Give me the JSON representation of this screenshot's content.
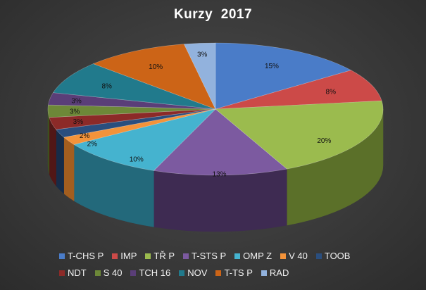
{
  "chart_data": {
    "type": "pie",
    "title": "Kurzy  2017",
    "legend_position": "bottom",
    "slices": [
      {
        "label": "T-CHS P",
        "value": 15,
        "display": "15%",
        "color": "#4a7cc8",
        "side": "#2d4d82"
      },
      {
        "label": "IMP",
        "value": 8,
        "display": "8%",
        "color": "#cc4a48",
        "side": "#82302e"
      },
      {
        "label": "TŘ P",
        "value": 20,
        "display": "20%",
        "color": "#9bbb4e",
        "side": "#5b7029"
      },
      {
        "label": "T-STS P",
        "value": 13,
        "display": "13%",
        "color": "#7c5aa0",
        "side": "#3e2b52"
      },
      {
        "label": "OMP Z",
        "value": 10,
        "display": "10%",
        "color": "#45b3cf",
        "side": "#23697b"
      },
      {
        "label": "V 40",
        "value": 2,
        "display": "2%",
        "color": "#f3933a",
        "side": "#a35e1f"
      },
      {
        "label": "TOOB",
        "value": 2,
        "display": "2%",
        "color": "#2a4e7e",
        "side": "#172c48"
      },
      {
        "label": "NDT",
        "value": 3,
        "display": "3%",
        "color": "#8c2a28",
        "side": "#511716"
      },
      {
        "label": "S 40",
        "value": 3,
        "display": "3%",
        "color": "#6d8838",
        "side": "#3f501f"
      },
      {
        "label": "TCH 16",
        "value": 3,
        "display": "3%",
        "color": "#5a3e78",
        "side": "#33224a"
      },
      {
        "label": "NOV",
        "value": 8,
        "display": "8%",
        "color": "#217a8c",
        "side": "#134651"
      },
      {
        "label": "T-TS P",
        "value": 10,
        "display": "10%",
        "color": "#cc6417",
        "side": "#7c3c0d"
      },
      {
        "label": "RAD",
        "value": 3,
        "display": "3%",
        "color": "#92b2dd",
        "side": "#5a7aa3"
      }
    ]
  }
}
